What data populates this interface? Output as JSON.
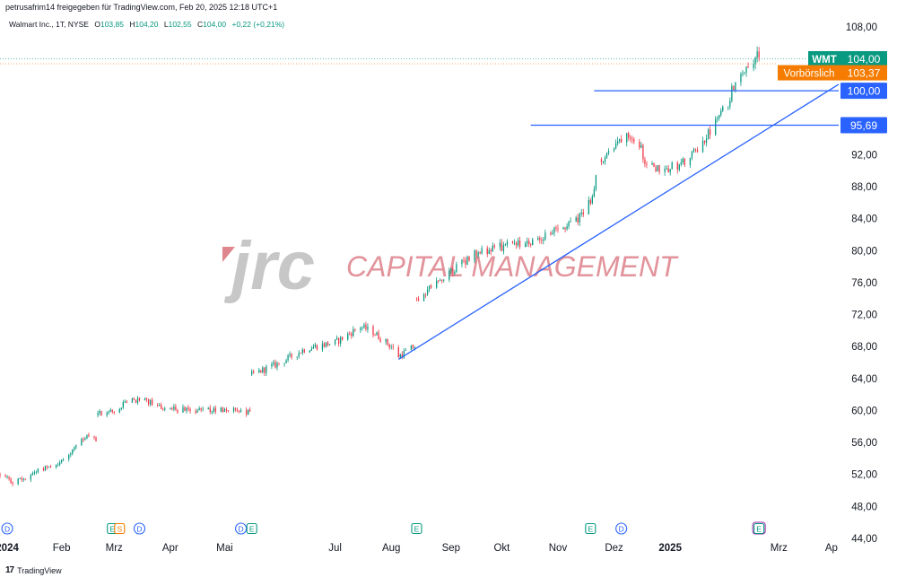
{
  "header": {
    "published": "petrusafrim14 freigegeben für TradingView.com, Feb 20, 2025 12:18 UTC+1",
    "symbol": "Walmart Inc., 1T, NYSE",
    "open_label": "O",
    "open": "103,85",
    "high_label": "H",
    "high": "104,20",
    "low_label": "L",
    "low": "102,55",
    "close_label": "C",
    "close": "104,00",
    "change": "+0,22 (+0,21%)"
  },
  "footer": {
    "brand_logo": "17",
    "brand_text": "TradingView"
  },
  "watermark": {
    "logo": "jrc",
    "text": "CAPITAL MANAGEMENT"
  },
  "colors": {
    "up": "#089981",
    "down": "#f23645",
    "line": "#2962ff",
    "wmt": "#089981",
    "premarket": "#f57c00",
    "watermark": "#d9707a"
  },
  "chart_data": {
    "type": "candlestick",
    "ylim": [
      44,
      110
    ],
    "y_ticks": [
      44,
      48,
      52,
      56,
      60,
      64,
      68,
      72,
      76,
      80,
      84,
      88,
      92,
      96,
      100,
      104,
      108
    ],
    "y_tick_labels": [
      "44,00",
      "48,00",
      "52,00",
      "56,00",
      "60,00",
      "64,00",
      "68,00",
      "72,00",
      "76,00",
      "80,00",
      "84,00",
      "88,00",
      "92,00",
      "",
      "",
      "",
      "108,00"
    ],
    "x_range": [
      "2023-12-29",
      "2025-04-05"
    ],
    "x_ticks": [
      {
        "date": "2024-01-02",
        "label": "2024",
        "bold": true
      },
      {
        "date": "2024-02-01",
        "label": "Feb",
        "bold": false
      },
      {
        "date": "2024-03-01",
        "label": "Mrz",
        "bold": false
      },
      {
        "date": "2024-04-01",
        "label": "Apr",
        "bold": false
      },
      {
        "date": "2024-05-01",
        "label": "Mai",
        "bold": false
      },
      {
        "date": "2024-07-01",
        "label": "Jul",
        "bold": false
      },
      {
        "date": "2024-08-01",
        "label": "Aug",
        "bold": false
      },
      {
        "date": "2024-09-03",
        "label": "Sep",
        "bold": false
      },
      {
        "date": "2024-10-01",
        "label": "Okt",
        "bold": false
      },
      {
        "date": "2024-11-01",
        "label": "Nov",
        "bold": false
      },
      {
        "date": "2024-12-02",
        "label": "Dez",
        "bold": false
      },
      {
        "date": "2025-01-02",
        "label": "2025",
        "bold": true
      },
      {
        "date": "2025-03-03",
        "label": "Mrz",
        "bold": false
      },
      {
        "date": "2025-04-01",
        "label": "Ap",
        "bold": false
      }
    ],
    "price_path": [
      [
        "2023-12-29",
        52.0
      ],
      [
        "2024-01-05",
        51.0
      ],
      [
        "2024-01-12",
        51.6
      ],
      [
        "2024-01-19",
        52.6
      ],
      [
        "2024-01-31",
        53.5
      ],
      [
        "2024-02-09",
        55.5
      ],
      [
        "2024-02-16",
        56.8
      ],
      [
        "2024-02-20",
        56.2
      ],
      [
        "2024-02-21",
        59.5
      ],
      [
        "2024-03-01",
        59.8
      ],
      [
        "2024-03-08",
        61.0
      ],
      [
        "2024-03-15",
        61.4
      ],
      [
        "2024-03-25",
        60.6
      ],
      [
        "2024-04-01",
        60.2
      ],
      [
        "2024-04-15",
        59.9
      ],
      [
        "2024-05-01",
        60.2
      ],
      [
        "2024-05-10",
        60.0
      ],
      [
        "2024-05-15",
        59.8
      ],
      [
        "2024-05-16",
        64.5
      ],
      [
        "2024-06-01",
        66.0
      ],
      [
        "2024-06-15",
        67.8
      ],
      [
        "2024-07-01",
        68.5
      ],
      [
        "2024-07-15",
        70.5
      ],
      [
        "2024-07-22",
        69.8
      ],
      [
        "2024-08-01",
        68.0
      ],
      [
        "2024-08-05",
        66.8
      ],
      [
        "2024-08-14",
        68.0
      ],
      [
        "2024-08-15",
        74.0
      ],
      [
        "2024-09-01",
        77.0
      ],
      [
        "2024-09-15",
        79.5
      ],
      [
        "2024-10-01",
        80.5
      ],
      [
        "2024-10-15",
        81.0
      ],
      [
        "2024-10-31",
        82.5
      ],
      [
        "2024-11-15",
        84.5
      ],
      [
        "2024-11-19",
        86.5
      ],
      [
        "2024-11-25",
        91.5
      ],
      [
        "2024-12-02",
        93.0
      ],
      [
        "2024-12-09",
        95.0
      ],
      [
        "2024-12-16",
        93.5
      ],
      [
        "2024-12-20",
        90.5
      ],
      [
        "2024-12-31",
        90.3
      ],
      [
        "2025-01-10",
        91.0
      ],
      [
        "2025-01-17",
        92.5
      ],
      [
        "2025-01-27",
        96.0
      ],
      [
        "2025-02-03",
        98.5
      ],
      [
        "2025-02-07",
        101.5
      ],
      [
        "2025-02-13",
        103.0
      ],
      [
        "2025-02-19",
        104.5
      ],
      [
        "2025-02-20",
        104.0
      ]
    ],
    "levels": [
      {
        "name": "line-100",
        "price": 100.0,
        "from": "2024-11-21",
        "label": "100,00"
      },
      {
        "name": "line-95-69",
        "price": 95.69,
        "from": "2024-10-17",
        "label": "95,69"
      }
    ],
    "trendline": {
      "from": [
        "2024-08-05",
        66.4
      ],
      "to": [
        "2025-04-05",
        100.8
      ]
    },
    "price_labels": {
      "last": {
        "tag": "WMT",
        "value": "104,00",
        "price": 104.0
      },
      "premarket": {
        "tag": "Vorbörslich",
        "value": "103,37",
        "price": 103.37
      }
    },
    "events": [
      {
        "date": "2024-01-02",
        "letter": "D"
      },
      {
        "date": "2024-02-29",
        "letter": "E"
      },
      {
        "date": "2024-03-04",
        "letter": "S"
      },
      {
        "date": "2024-03-15",
        "letter": "D"
      },
      {
        "date": "2024-05-10",
        "letter": "D"
      },
      {
        "date": "2024-05-16",
        "letter": "E"
      },
      {
        "date": "2024-08-15",
        "letter": "E"
      },
      {
        "date": "2024-11-19",
        "letter": "E"
      },
      {
        "date": "2024-12-06",
        "letter": "D"
      },
      {
        "date": "2025-02-20",
        "letter": "E"
      }
    ]
  }
}
